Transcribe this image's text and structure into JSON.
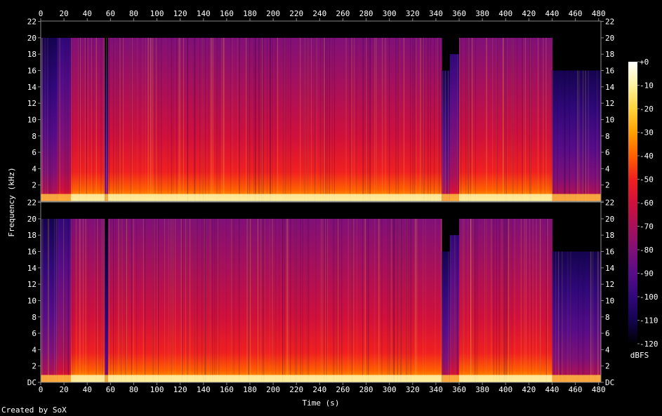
{
  "credit": "Created by SoX",
  "chart_data": {
    "type": "heatmap",
    "title": "",
    "xlabel": "Time (s)",
    "ylabel": "Frequency (kHz)",
    "xlim": [
      0,
      482
    ],
    "ylim": [
      0,
      22.05
    ],
    "x_ticks": [
      0,
      20,
      40,
      60,
      80,
      100,
      120,
      140,
      160,
      180,
      200,
      220,
      240,
      260,
      280,
      300,
      320,
      340,
      360,
      380,
      400,
      420,
      440,
      460,
      480
    ],
    "y_ticks": [
      0,
      2,
      4,
      6,
      8,
      10,
      12,
      14,
      16,
      18,
      20,
      22
    ],
    "y_tick_labels": [
      "DC",
      "2",
      "4",
      "6",
      "8",
      "10",
      "12",
      "14",
      "16",
      "18",
      "20",
      "22"
    ],
    "channels": [
      "channel-1",
      "channel-2"
    ],
    "colorbar": {
      "label": "dBFS",
      "range": [
        -120,
        0
      ],
      "ticks": [
        "+0",
        "-10",
        "-20",
        "-30",
        "-40",
        "-50",
        "-60",
        "-70",
        "-80",
        "-90",
        "-100",
        "-110",
        "-120"
      ],
      "colors": [
        "#ffffff",
        "#fff2a0",
        "#ffd43c",
        "#ffa000",
        "#ff6000",
        "#f02020",
        "#d0103c",
        "#a8105a",
        "#801078",
        "#580c88",
        "#30087a",
        "#140450",
        "#000000"
      ]
    },
    "segments": [
      {
        "t0": 0,
        "t1": 14,
        "level": 0.3,
        "cutoff": 20
      },
      {
        "t0": 14,
        "t1": 26,
        "level": 0.45,
        "cutoff": 20
      },
      {
        "t0": 26,
        "t1": 55,
        "level": 0.8,
        "cutoff": 20
      },
      {
        "t0": 55,
        "t1": 58,
        "level": 0.25,
        "cutoff": 20
      },
      {
        "t0": 58,
        "t1": 140,
        "level": 0.82,
        "cutoff": 20
      },
      {
        "t0": 140,
        "t1": 190,
        "level": 0.78,
        "cutoff": 20
      },
      {
        "t0": 190,
        "t1": 270,
        "level": 0.84,
        "cutoff": 20
      },
      {
        "t0": 270,
        "t1": 345,
        "level": 0.8,
        "cutoff": 20
      },
      {
        "t0": 345,
        "t1": 352,
        "level": 0.28,
        "cutoff": 16
      },
      {
        "t0": 352,
        "t1": 360,
        "level": 0.45,
        "cutoff": 18
      },
      {
        "t0": 360,
        "t1": 440,
        "level": 0.78,
        "cutoff": 20
      },
      {
        "t0": 440,
        "t1": 482,
        "level": 0.3,
        "cutoff": 16
      }
    ]
  }
}
